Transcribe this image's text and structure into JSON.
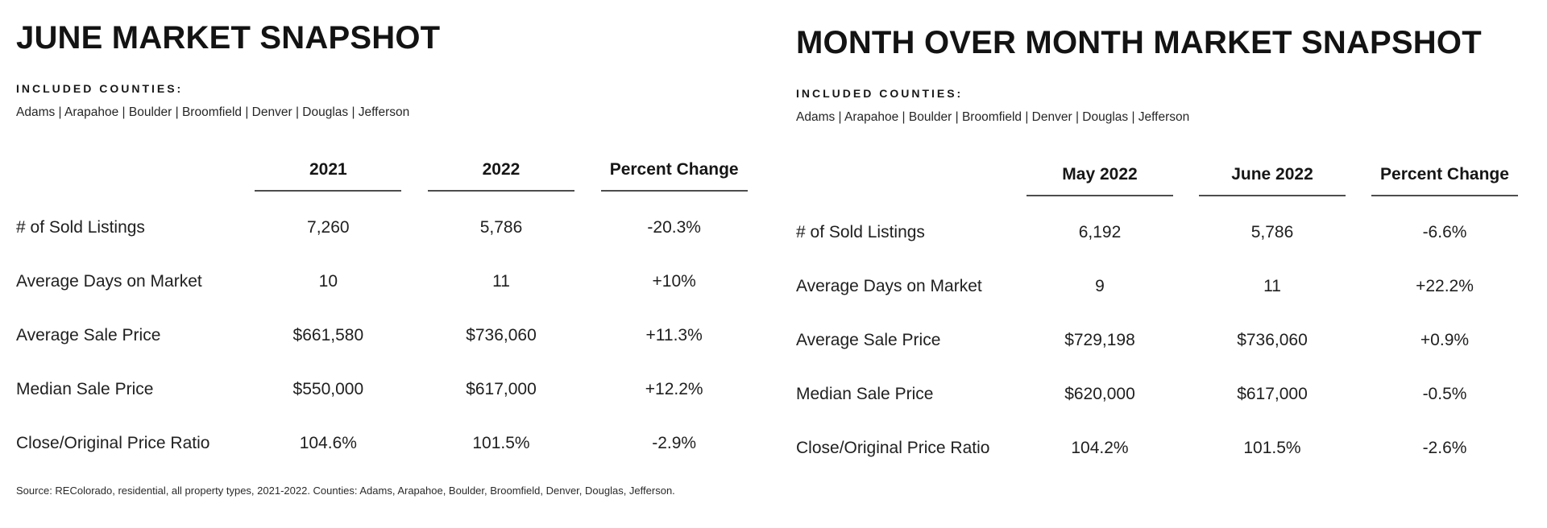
{
  "page": {
    "background_color": "#ffffff",
    "text_color": "#1e1e1e",
    "rule_color": "#4d4d4d"
  },
  "panels": [
    {
      "title": "JUNE MARKET SNAPSHOT",
      "counties_label": "INCLUDED COUNTIES:",
      "counties": "Adams | Arapahoe | Boulder | Broomfield | Denver | Douglas | Jefferson",
      "columns": [
        "2021",
        "2022",
        "Percent Change"
      ],
      "rows": [
        {
          "label": "# of Sold Listings",
          "values": [
            "7,260",
            "5,786",
            "-20.3%"
          ]
        },
        {
          "label": "Average Days on Market",
          "values": [
            "10",
            "11",
            "+10%"
          ]
        },
        {
          "label": "Average Sale Price",
          "values": [
            "$661,580",
            "$736,060",
            "+11.3%"
          ]
        },
        {
          "label": "Median Sale Price",
          "values": [
            "$550,000",
            "$617,000",
            "+12.2%"
          ]
        },
        {
          "label": "Close/Original Price Ratio",
          "values": [
            "104.6%",
            "101.5%",
            "-2.9%"
          ]
        }
      ],
      "source": "Source: REColorado, residential, all property types, 2021-2022. Counties: Adams, Arapahoe, Boulder, Broomfield, Denver, Douglas, Jefferson."
    },
    {
      "title": "MONTH OVER MONTH MARKET SNAPSHOT",
      "counties_label": "INCLUDED COUNTIES:",
      "counties": "Adams | Arapahoe | Boulder | Broomfield | Denver | Douglas | Jefferson",
      "columns": [
        "May 2022",
        "June 2022",
        "Percent Change"
      ],
      "rows": [
        {
          "label": "# of Sold Listings",
          "values": [
            "6,192",
            "5,786",
            "-6.6%"
          ]
        },
        {
          "label": "Average Days on Market",
          "values": [
            "9",
            "11",
            "+22.2%"
          ]
        },
        {
          "label": "Average Sale Price",
          "values": [
            "$729,198",
            "$736,060",
            "+0.9%"
          ]
        },
        {
          "label": "Median Sale Price",
          "values": [
            "$620,000",
            "$617,000",
            "-0.5%"
          ]
        },
        {
          "label": "Close/Original Price Ratio",
          "values": [
            "104.2%",
            "101.5%",
            "-2.6%"
          ]
        }
      ]
    }
  ]
}
